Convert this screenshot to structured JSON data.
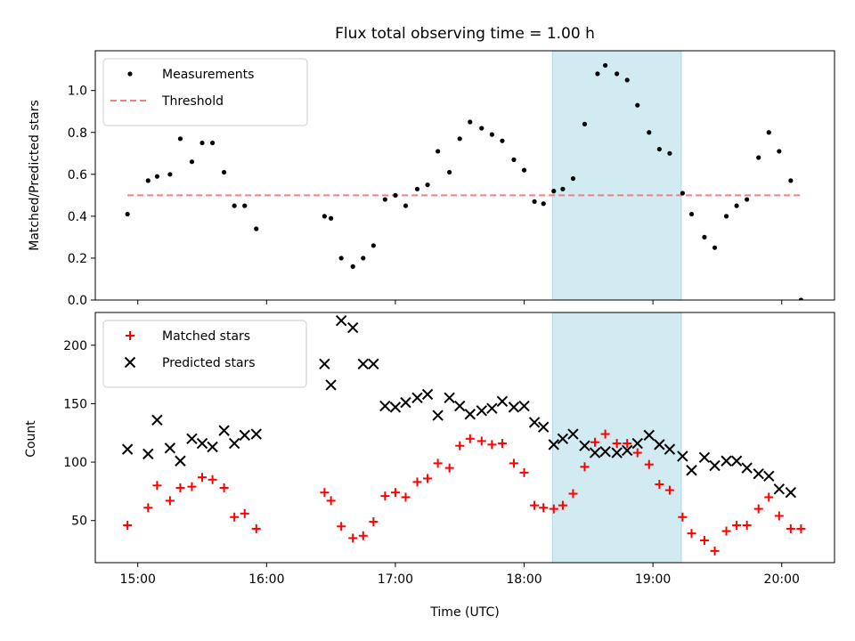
{
  "figure": {
    "title": "Flux total observing time = 1.00 h",
    "xlabel": "Time (UTC)",
    "xticks": [
      {
        "value": 15.0,
        "label": "15:00"
      },
      {
        "value": 16.0,
        "label": "16:00"
      },
      {
        "value": 17.0,
        "label": "17:00"
      },
      {
        "value": 18.0,
        "label": "18:00"
      },
      {
        "value": 19.0,
        "label": "19:00"
      },
      {
        "value": 20.0,
        "label": "20:00"
      }
    ],
    "xlim": [
      14.67,
      20.41
    ],
    "shaded_region": {
      "x0": 18.22,
      "x1": 19.22,
      "color": "#add8e6"
    }
  },
  "chart_data": [
    {
      "type": "scatter",
      "ylabel": "Matched/Predicted stars",
      "ylim": [
        0,
        1.19
      ],
      "yticks": [
        {
          "value": 0.0,
          "label": "0.0"
        },
        {
          "value": 0.2,
          "label": "0.2"
        },
        {
          "value": 0.4,
          "label": "0.4"
        },
        {
          "value": 0.6,
          "label": "0.6"
        },
        {
          "value": 0.8,
          "label": "0.8"
        },
        {
          "value": 1.0,
          "label": "1.0"
        }
      ],
      "legend_position": "top-left",
      "threshold": {
        "name": "Threshold",
        "value": 0.5,
        "x_range": [
          14.92,
          20.15
        ],
        "color": "#f08080"
      },
      "series": [
        {
          "name": "Measurements",
          "color": "#000000",
          "points": [
            [
              14.92,
              0.41
            ],
            [
              15.08,
              0.57
            ],
            [
              15.15,
              0.59
            ],
            [
              15.25,
              0.6
            ],
            [
              15.33,
              0.77
            ],
            [
              15.42,
              0.66
            ],
            [
              15.5,
              0.75
            ],
            [
              15.58,
              0.75
            ],
            [
              15.67,
              0.61
            ],
            [
              15.75,
              0.45
            ],
            [
              15.83,
              0.45
            ],
            [
              15.92,
              0.34
            ],
            [
              16.45,
              0.4
            ],
            [
              16.5,
              0.39
            ],
            [
              16.58,
              0.2
            ],
            [
              16.67,
              0.16
            ],
            [
              16.75,
              0.2
            ],
            [
              16.83,
              0.26
            ],
            [
              16.92,
              0.48
            ],
            [
              17.0,
              0.5
            ],
            [
              17.08,
              0.45
            ],
            [
              17.17,
              0.53
            ],
            [
              17.25,
              0.55
            ],
            [
              17.33,
              0.71
            ],
            [
              17.42,
              0.61
            ],
            [
              17.5,
              0.77
            ],
            [
              17.58,
              0.85
            ],
            [
              17.67,
              0.82
            ],
            [
              17.75,
              0.79
            ],
            [
              17.83,
              0.76
            ],
            [
              17.92,
              0.67
            ],
            [
              18.0,
              0.62
            ],
            [
              18.08,
              0.47
            ],
            [
              18.15,
              0.46
            ],
            [
              18.23,
              0.52
            ],
            [
              18.3,
              0.53
            ],
            [
              18.38,
              0.58
            ],
            [
              18.47,
              0.84
            ],
            [
              18.57,
              1.08
            ],
            [
              18.63,
              1.12
            ],
            [
              18.72,
              1.08
            ],
            [
              18.8,
              1.05
            ],
            [
              18.88,
              0.93
            ],
            [
              18.97,
              0.8
            ],
            [
              19.05,
              0.72
            ],
            [
              19.13,
              0.7
            ],
            [
              19.23,
              0.51
            ],
            [
              19.3,
              0.41
            ],
            [
              19.4,
              0.3
            ],
            [
              19.48,
              0.25
            ],
            [
              19.57,
              0.4
            ],
            [
              19.65,
              0.45
            ],
            [
              19.73,
              0.48
            ],
            [
              19.82,
              0.68
            ],
            [
              19.9,
              0.8
            ],
            [
              19.98,
              0.71
            ],
            [
              20.07,
              0.57
            ],
            [
              20.15,
              0.0
            ]
          ]
        }
      ]
    },
    {
      "type": "scatter",
      "ylabel": "Count",
      "ylim": [
        14,
        228
      ],
      "yticks": [
        {
          "value": 50,
          "label": "50"
        },
        {
          "value": 100,
          "label": "100"
        },
        {
          "value": 150,
          "label": "150"
        },
        {
          "value": 200,
          "label": "200"
        }
      ],
      "legend_position": "top-left",
      "series": [
        {
          "name": "Matched stars",
          "marker": "plus",
          "color": "#ff0000",
          "points": [
            [
              14.92,
              46
            ],
            [
              15.08,
              61
            ],
            [
              15.15,
              80
            ],
            [
              15.25,
              67
            ],
            [
              15.33,
              78
            ],
            [
              15.42,
              79
            ],
            [
              15.5,
              87
            ],
            [
              15.58,
              85
            ],
            [
              15.67,
              78
            ],
            [
              15.75,
              53
            ],
            [
              15.83,
              56
            ],
            [
              15.92,
              43
            ],
            [
              16.45,
              74
            ],
            [
              16.5,
              67
            ],
            [
              16.58,
              45
            ],
            [
              16.67,
              35
            ],
            [
              16.75,
              37
            ],
            [
              16.83,
              49
            ],
            [
              16.92,
              71
            ],
            [
              17.0,
              74
            ],
            [
              17.08,
              70
            ],
            [
              17.17,
              83
            ],
            [
              17.25,
              86
            ],
            [
              17.33,
              99
            ],
            [
              17.42,
              95
            ],
            [
              17.5,
              114
            ],
            [
              17.58,
              120
            ],
            [
              17.67,
              118
            ],
            [
              17.75,
              115
            ],
            [
              17.83,
              116
            ],
            [
              17.92,
              99
            ],
            [
              18.0,
              91
            ],
            [
              18.08,
              63
            ],
            [
              18.15,
              61
            ],
            [
              18.23,
              60
            ],
            [
              18.3,
              63
            ],
            [
              18.38,
              73
            ],
            [
              18.47,
              96
            ],
            [
              18.55,
              117
            ],
            [
              18.63,
              124
            ],
            [
              18.72,
              116
            ],
            [
              18.8,
              116
            ],
            [
              18.88,
              108
            ],
            [
              18.97,
              98
            ],
            [
              19.05,
              81
            ],
            [
              19.13,
              76
            ],
            [
              19.23,
              53
            ],
            [
              19.3,
              39
            ],
            [
              19.4,
              33
            ],
            [
              19.48,
              24
            ],
            [
              19.57,
              41
            ],
            [
              19.65,
              46
            ],
            [
              19.73,
              46
            ],
            [
              19.82,
              60
            ],
            [
              19.9,
              70
            ],
            [
              19.98,
              54
            ],
            [
              20.07,
              43
            ],
            [
              20.15,
              43
            ]
          ]
        },
        {
          "name": "Predicted stars",
          "marker": "x",
          "color": "#000000",
          "points": [
            [
              14.92,
              111
            ],
            [
              15.08,
              107
            ],
            [
              15.15,
              136
            ],
            [
              15.25,
              112
            ],
            [
              15.33,
              101
            ],
            [
              15.42,
              120
            ],
            [
              15.5,
              116
            ],
            [
              15.58,
              113
            ],
            [
              15.67,
              127
            ],
            [
              15.75,
              116
            ],
            [
              15.83,
              123
            ],
            [
              15.92,
              124
            ],
            [
              16.45,
              184
            ],
            [
              16.5,
              166
            ],
            [
              16.58,
              221
            ],
            [
              16.67,
              215
            ],
            [
              16.75,
              184
            ],
            [
              16.83,
              184
            ],
            [
              16.92,
              148
            ],
            [
              17.0,
              147
            ],
            [
              17.08,
              151
            ],
            [
              17.17,
              155
            ],
            [
              17.25,
              158
            ],
            [
              17.33,
              140
            ],
            [
              17.42,
              155
            ],
            [
              17.5,
              148
            ],
            [
              17.58,
              141
            ],
            [
              17.67,
              144
            ],
            [
              17.75,
              146
            ],
            [
              17.83,
              152
            ],
            [
              17.92,
              147
            ],
            [
              18.0,
              148
            ],
            [
              18.08,
              134
            ],
            [
              18.15,
              130
            ],
            [
              18.23,
              115
            ],
            [
              18.3,
              120
            ],
            [
              18.38,
              124
            ],
            [
              18.47,
              114
            ],
            [
              18.55,
              108
            ],
            [
              18.63,
              109
            ],
            [
              18.72,
              108
            ],
            [
              18.8,
              110
            ],
            [
              18.88,
              116
            ],
            [
              18.97,
              123
            ],
            [
              19.05,
              115
            ],
            [
              19.13,
              111
            ],
            [
              19.23,
              105
            ],
            [
              19.3,
              93
            ],
            [
              19.4,
              104
            ],
            [
              19.48,
              97
            ],
            [
              19.57,
              101
            ],
            [
              19.65,
              101
            ],
            [
              19.73,
              95
            ],
            [
              19.82,
              90
            ],
            [
              19.9,
              88
            ],
            [
              19.98,
              77
            ],
            [
              20.07,
              74
            ]
          ]
        }
      ]
    }
  ]
}
